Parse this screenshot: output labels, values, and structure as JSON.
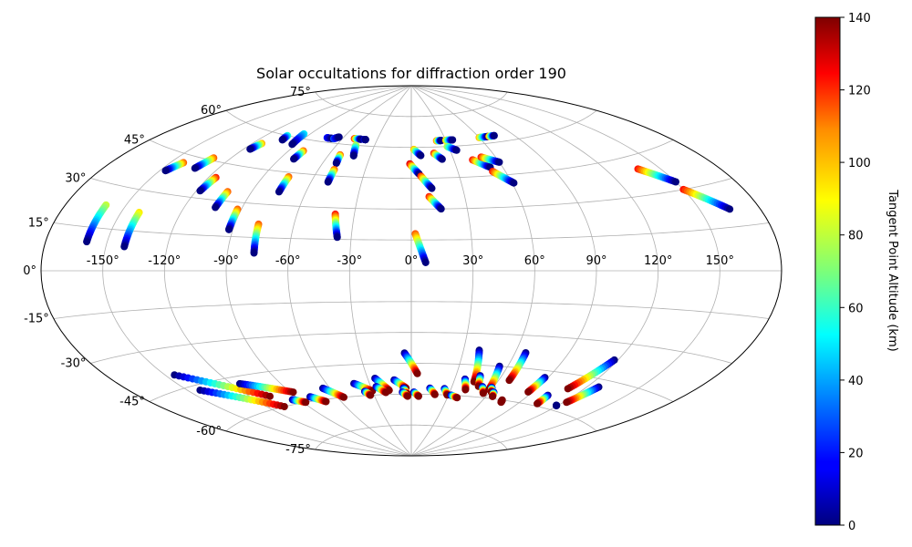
{
  "chart_data": {
    "type": "scatter",
    "projection": "aitoff",
    "title": "Solar occultations for diffraction order 190",
    "lon_ticks": [
      -150,
      -120,
      -90,
      -60,
      -30,
      0,
      30,
      60,
      90,
      120,
      150
    ],
    "lon_tick_labels": [
      "-150°",
      "-120°",
      "-90°",
      "-60°",
      "-30°",
      "0°",
      "30°",
      "60°",
      "90°",
      "120°",
      "150°"
    ],
    "lat_ticks": [
      75,
      60,
      45,
      30,
      15,
      0,
      -15,
      -30,
      -45,
      -60,
      -75
    ],
    "lat_tick_labels": [
      "75°",
      "60°",
      "45°",
      "30°",
      "15°",
      "0°",
      "-15°",
      "-30°",
      "-45°",
      "-60°",
      "-75°"
    ],
    "grid": true,
    "colorbar": {
      "label": "Tangent Point Altitude (km)",
      "min": 0,
      "max": 140,
      "ticks": [
        0,
        20,
        40,
        60,
        80,
        100,
        120,
        140
      ],
      "tick_labels": [
        "0",
        "20",
        "40",
        "60",
        "80",
        "100",
        "120",
        "140"
      ],
      "colormap": "jet"
    },
    "occultations": [
      {
        "lon_start": -160,
        "lat_start": 23,
        "alt_start": 80,
        "lon_end": -160,
        "lat_end": 10,
        "alt_end": 0
      },
      {
        "lon_start": -141,
        "lat_start": 22,
        "alt_start": 90,
        "lon_end": -141,
        "lat_end": 9,
        "alt_end": 0
      },
      {
        "lon_start": -143,
        "lat_start": 42,
        "alt_start": 110,
        "lon_end": -147,
        "lat_end": 38,
        "alt_end": 0
      },
      {
        "lon_start": -130,
        "lat_start": 46,
        "alt_start": 110,
        "lon_end": -133,
        "lat_end": 41,
        "alt_end": 0
      },
      {
        "lon_start": -116,
        "lat_start": 39,
        "alt_start": 120,
        "lon_end": -118,
        "lat_end": 33,
        "alt_end": 0
      },
      {
        "lon_start": -114,
        "lat_start": 55,
        "alt_start": 100,
        "lon_end": -116,
        "lat_end": 52,
        "alt_end": 0
      },
      {
        "lon_start": -103,
        "lat_start": 34,
        "alt_start": 110,
        "lon_end": -104,
        "lat_end": 27,
        "alt_end": 0
      },
      {
        "lon_start": -105,
        "lat_start": 60,
        "alt_start": 60,
        "lon_end": -104,
        "lat_end": 58,
        "alt_end": 0
      },
      {
        "lon_start": -95,
        "lat_start": 62,
        "alt_start": 50,
        "lon_end": -93,
        "lat_end": 57,
        "alt_end": 0
      },
      {
        "lon_start": -92,
        "lat_start": 27,
        "alt_start": 110,
        "lon_end": -92,
        "lat_end": 18,
        "alt_end": 0
      },
      {
        "lon_start": -80,
        "lat_start": 55,
        "alt_start": 110,
        "lon_end": -81,
        "lat_end": 51,
        "alt_end": 0
      },
      {
        "lon_start": -78,
        "lat_start": 21,
        "alt_start": 110,
        "lon_end": -77,
        "lat_end": 8,
        "alt_end": 0
      },
      {
        "lon_start": -75,
        "lat_start": 43,
        "alt_start": 110,
        "lon_end": -75,
        "lat_end": 36,
        "alt_end": 0
      },
      {
        "lon_start": -73,
        "lat_start": 62,
        "alt_start": 20,
        "lon_end": -68,
        "lat_end": 62,
        "alt_end": 0
      },
      {
        "lon_start": -67,
        "lat_start": 62,
        "alt_start": 30,
        "lon_end": -64,
        "lat_end": 63,
        "alt_end": 0
      },
      {
        "lon_start": -52,
        "lat_start": 55,
        "alt_start": 110,
        "lon_end": -51,
        "lat_end": 51,
        "alt_end": 0
      },
      {
        "lon_start": -50,
        "lat_start": 48,
        "alt_start": 110,
        "lon_end": -50,
        "lat_end": 42,
        "alt_end": 0
      },
      {
        "lon_start": -50,
        "lat_start": 63,
        "alt_start": 120,
        "lon_end": -44,
        "lat_end": 63,
        "alt_end": 0
      },
      {
        "lon_start": -45,
        "lat_start": 60,
        "alt_start": 80,
        "lon_end": -42,
        "lat_end": 55,
        "alt_end": 0
      },
      {
        "lon_start": -41,
        "lat_start": 63,
        "alt_start": 20,
        "lon_end": -40,
        "lat_end": 63,
        "alt_end": 0
      },
      {
        "lon_start": -40,
        "lat_start": 27,
        "alt_start": 120,
        "lon_end": -37,
        "lat_end": 16,
        "alt_end": 0
      },
      {
        "lon_start": 2,
        "lat_start": 59,
        "alt_start": 100,
        "lon_end": 7,
        "lat_end": 56,
        "alt_end": 0
      },
      {
        "lon_start": -1,
        "lat_start": 52,
        "alt_start": 130,
        "lon_end": 5,
        "lat_end": 47,
        "alt_end": 0
      },
      {
        "lon_start": 6,
        "lat_start": 46,
        "alt_start": 120,
        "lon_end": 12,
        "lat_end": 40,
        "alt_end": 0
      },
      {
        "lon_start": 10,
        "lat_start": 36,
        "alt_start": 120,
        "lon_end": 16,
        "lat_end": 30,
        "alt_end": 0
      },
      {
        "lon_start": 2,
        "lat_start": 18,
        "alt_start": 110,
        "lon_end": 7,
        "lat_end": 4,
        "alt_end": 0
      },
      {
        "lon_start": 17,
        "lat_start": 57,
        "alt_start": 120,
        "lon_end": 22,
        "lat_end": 54,
        "alt_end": 0
      },
      {
        "lon_start": 22,
        "lat_start": 63,
        "alt_start": 110,
        "lon_end": 26,
        "lat_end": 63,
        "alt_end": 0
      },
      {
        "lon_start": 30,
        "lat_start": 63,
        "alt_start": 100,
        "lon_end": 36,
        "lat_end": 63,
        "alt_end": 0
      },
      {
        "lon_start": 29,
        "lat_start": 60,
        "alt_start": 80,
        "lon_end": 35,
        "lat_end": 58,
        "alt_end": 0
      },
      {
        "lon_start": 43,
        "lat_start": 53,
        "alt_start": 120,
        "lon_end": 52,
        "lat_end": 49,
        "alt_end": 0
      },
      {
        "lon_start": 50,
        "lat_start": 54,
        "alt_start": 120,
        "lon_end": 60,
        "lat_end": 51,
        "alt_end": 0
      },
      {
        "lon_start": 52,
        "lat_start": 47,
        "alt_start": 120,
        "lon_end": 61,
        "lat_end": 41,
        "alt_end": 0
      },
      {
        "lon_start": 60,
        "lat_start": 63,
        "alt_start": 100,
        "lon_end": 68,
        "lat_end": 63,
        "alt_end": 0
      },
      {
        "lon_start": 69,
        "lat_start": 63,
        "alt_start": 110,
        "lon_end": 74,
        "lat_end": 63,
        "alt_end": 0
      },
      {
        "lon_start": 138,
        "lat_start": 40,
        "alt_start": 120,
        "lon_end": 150,
        "lat_end": 33,
        "alt_end": 0
      },
      {
        "lon_start": 150,
        "lat_start": 30,
        "alt_start": 120,
        "lon_end": 165,
        "lat_end": 21,
        "alt_end": 0
      },
      {
        "lon_start": -145,
        "lat_start": -40,
        "alt_start": 0,
        "lon_end": -107,
        "lat_end": -55,
        "alt_end": 140
      },
      {
        "lon_start": -143,
        "lat_start": -47,
        "alt_start": 0,
        "lon_end": -108,
        "lat_end": -60,
        "alt_end": 140
      },
      {
        "lon_start": -115,
        "lat_start": -48,
        "alt_start": 0,
        "lon_end": -88,
        "lat_end": -55,
        "alt_end": 140
      },
      {
        "lon_start": -95,
        "lat_start": -58,
        "alt_start": 0,
        "lon_end": -88,
        "lat_end": -60,
        "alt_end": 140
      },
      {
        "lon_start": -80,
        "lat_start": -58,
        "alt_start": 0,
        "lon_end": -72,
        "lat_end": -61,
        "alt_end": 140
      },
      {
        "lon_start": -65,
        "lat_start": -55,
        "alt_start": 0,
        "lon_end": -55,
        "lat_end": -60,
        "alt_end": 140
      },
      {
        "lon_start": -41,
        "lat_start": -54,
        "alt_start": 0,
        "lon_end": -30,
        "lat_end": -58,
        "alt_end": 140
      },
      {
        "lon_start": -36,
        "lat_start": -58,
        "alt_start": 0,
        "lon_end": -33,
        "lat_end": -60,
        "alt_end": 140
      },
      {
        "lon_start": -25,
        "lat_start": -52,
        "alt_start": 0,
        "lon_end": -17,
        "lat_end": -58,
        "alt_end": 140
      },
      {
        "lon_start": -26,
        "lat_start": -56,
        "alt_start": 0,
        "lon_end": -20,
        "lat_end": -59,
        "alt_end": 140
      },
      {
        "lon_start": -12,
        "lat_start": -53,
        "alt_start": 0,
        "lon_end": -4,
        "lat_end": -57,
        "alt_end": 140
      },
      {
        "lon_start": -6,
        "lat_start": -57,
        "alt_start": 0,
        "lon_end": -3,
        "lat_end": -60,
        "alt_end": 140
      },
      {
        "lon_start": -7,
        "lat_start": -59,
        "alt_start": 0,
        "lon_end": -3,
        "lat_end": -61,
        "alt_end": 140
      },
      {
        "lon_start": -4,
        "lat_start": -40,
        "alt_start": 0,
        "lon_end": 4,
        "lat_end": -50,
        "alt_end": 140
      },
      {
        "lon_start": 2,
        "lat_start": -59,
        "alt_start": 0,
        "lon_end": 6,
        "lat_end": -61,
        "alt_end": 140
      },
      {
        "lon_start": 14,
        "lat_start": -57,
        "alt_start": 0,
        "lon_end": 19,
        "lat_end": -60,
        "alt_end": 140
      },
      {
        "lon_start": 25,
        "lat_start": -57,
        "alt_start": 0,
        "lon_end": 29,
        "lat_end": -60,
        "alt_end": 140
      },
      {
        "lon_start": 32,
        "lat_start": -60,
        "alt_start": 0,
        "lon_end": 38,
        "lat_end": -61,
        "alt_end": 140
      },
      {
        "lon_start": 37,
        "lat_start": -52,
        "alt_start": 0,
        "lon_end": 41,
        "lat_end": -57,
        "alt_end": 140
      },
      {
        "lon_start": 39,
        "lat_start": -38,
        "alt_start": 0,
        "lon_end": 44,
        "lat_end": -53,
        "alt_end": 140
      },
      {
        "lon_start": 46,
        "lat_start": -50,
        "alt_start": 0,
        "lon_end": 49,
        "lat_end": -55,
        "alt_end": 140
      },
      {
        "lon_start": 52,
        "lat_start": -55,
        "alt_start": 0,
        "lon_end": 56,
        "lat_end": -58,
        "alt_end": 140
      },
      {
        "lon_start": 55,
        "lat_start": -45,
        "alt_start": 0,
        "lon_end": 58,
        "lat_end": -56,
        "alt_end": 140
      },
      {
        "lon_start": 59,
        "lat_start": -55,
        "alt_start": 0,
        "lon_end": 61,
        "lat_end": -57,
        "alt_end": 140
      },
      {
        "lon_start": 63,
        "lat_start": -57,
        "alt_start": 0,
        "lon_end": 65,
        "lat_end": -59,
        "alt_end": 140
      },
      {
        "lon_start": 66,
        "lat_start": -38,
        "alt_start": 0,
        "lon_end": 67,
        "lat_end": -51,
        "alt_end": 140
      },
      {
        "lon_start": 75,
        "lat_start": -60,
        "alt_start": 140,
        "lon_end": 76,
        "lat_end": -61,
        "alt_end": 140
      },
      {
        "lon_start": 88,
        "lat_start": -48,
        "alt_start": 0,
        "lon_end": 87,
        "lat_end": -55,
        "alt_end": 140
      },
      {
        "lon_start": 103,
        "lat_start": -55,
        "alt_start": 0,
        "lon_end": 104,
        "lat_end": -59,
        "alt_end": 140
      },
      {
        "lon_start": 118,
        "lat_start": -37,
        "alt_start": 0,
        "lon_end": 110,
        "lat_end": -51,
        "alt_end": 140
      },
      {
        "lon_start": 127,
        "lat_start": -48,
        "alt_start": 0,
        "lon_end": 122,
        "lat_end": -56,
        "alt_end": 140
      },
      {
        "lon_start": 119,
        "lat_start": -58,
        "alt_start": 0,
        "lon_end": 119,
        "lat_end": -58,
        "alt_end": 0
      }
    ]
  }
}
